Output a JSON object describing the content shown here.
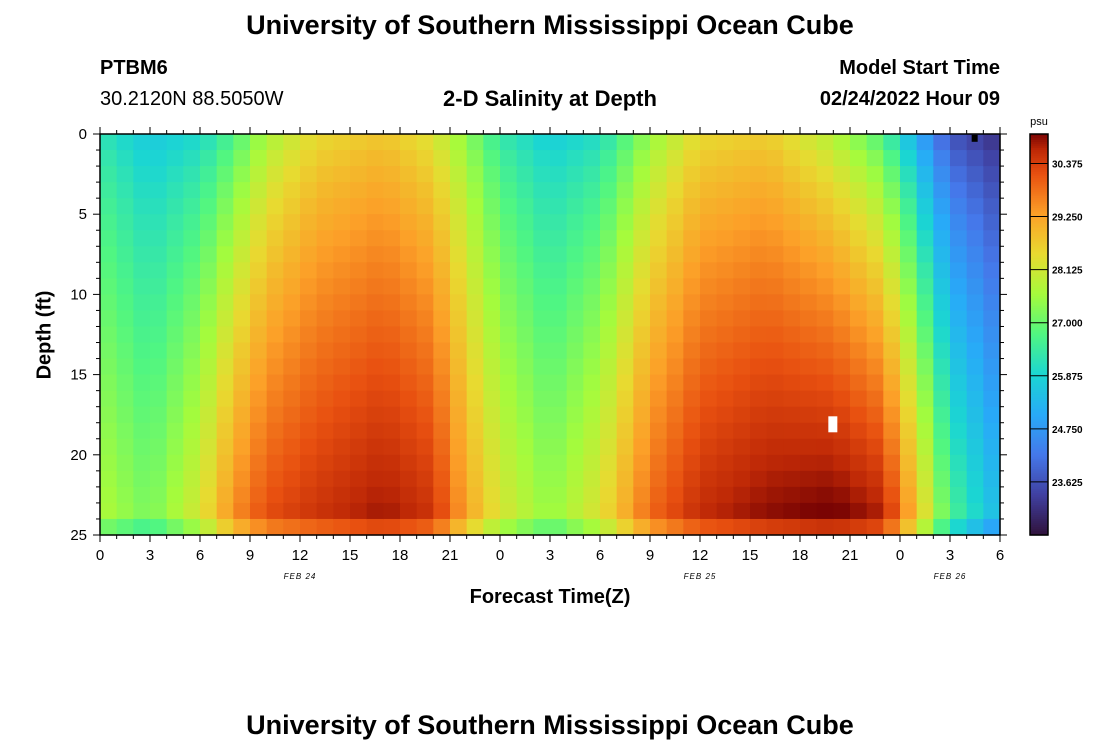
{
  "header": {
    "title": "University of Southern Mississippi Ocean Cube",
    "station_id": "PTBM6",
    "coordinates": "30.2120N  88.5050W",
    "chart_title": "2-D Salinity at Depth",
    "model_start_label": "Model Start Time",
    "model_start_value": "02/24/2022 Hour 09"
  },
  "footer": {
    "title": "University of Southern Mississippi Ocean Cube"
  },
  "chart_data": {
    "type": "heatmap",
    "title": "2-D Salinity at Depth",
    "xlabel": "Forecast Time(Z)",
    "ylabel": "Depth (ft)",
    "x_range_hours": [
      0,
      54
    ],
    "y_range_ft": [
      0,
      25
    ],
    "x_ticks": [
      "0",
      "3",
      "6",
      "9",
      "12",
      "15",
      "18",
      "21",
      "0",
      "3",
      "6",
      "9",
      "12",
      "15",
      "18",
      "21",
      "0",
      "3",
      "6"
    ],
    "y_ticks": [
      "0",
      "5",
      "10",
      "15",
      "20",
      "25"
    ],
    "date_labels": [
      {
        "text": "FEB 24",
        "hour": 12
      },
      {
        "text": "FEB 25",
        "hour": 36
      },
      {
        "text": "FEB 26",
        "hour": 51
      }
    ],
    "colorbar": {
      "unit": "psu",
      "min": 22.5,
      "max": 31.0,
      "ticks": [
        "30.375",
        "29.250",
        "28.125",
        "27.000",
        "25.875",
        "24.750",
        "23.625"
      ],
      "tick_values": [
        30.375,
        29.25,
        28.125,
        27.0,
        25.875,
        24.75,
        23.625
      ]
    },
    "salinity_bands": [
      {
        "hour": 0,
        "surface": 26.2,
        "bottom": 27.8
      },
      {
        "hour": 3,
        "surface": 25.6,
        "bottom": 27.2
      },
      {
        "hour": 6,
        "surface": 25.9,
        "bottom": 28.3
      },
      {
        "hour": 8,
        "surface": 26.6,
        "bottom": 29.6
      },
      {
        "hour": 10,
        "surface": 27.6,
        "bottom": 30.3
      },
      {
        "hour": 13,
        "surface": 28.4,
        "bottom": 30.6
      },
      {
        "hour": 17,
        "surface": 28.7,
        "bottom": 30.9
      },
      {
        "hour": 20,
        "surface": 28.2,
        "bottom": 30.6
      },
      {
        "hour": 22,
        "surface": 27.3,
        "bottom": 29.3
      },
      {
        "hour": 24,
        "surface": 26.3,
        "bottom": 28.3
      },
      {
        "hour": 27,
        "surface": 25.7,
        "bottom": 27.5
      },
      {
        "hour": 30,
        "surface": 26.0,
        "bottom": 28.4
      },
      {
        "hour": 33,
        "surface": 27.4,
        "bottom": 30.0
      },
      {
        "hour": 36,
        "surface": 28.4,
        "bottom": 30.7
      },
      {
        "hour": 40,
        "surface": 28.6,
        "bottom": 31.0
      },
      {
        "hour": 44,
        "surface": 27.7,
        "bottom": 31.2
      },
      {
        "hour": 47,
        "surface": 26.6,
        "bottom": 30.9
      },
      {
        "hour": 49,
        "surface": 25.0,
        "bottom": 29.0
      },
      {
        "hour": 51,
        "surface": 23.6,
        "bottom": 26.8
      },
      {
        "hour": 54,
        "surface": 23.0,
        "bottom": 25.4
      }
    ]
  }
}
